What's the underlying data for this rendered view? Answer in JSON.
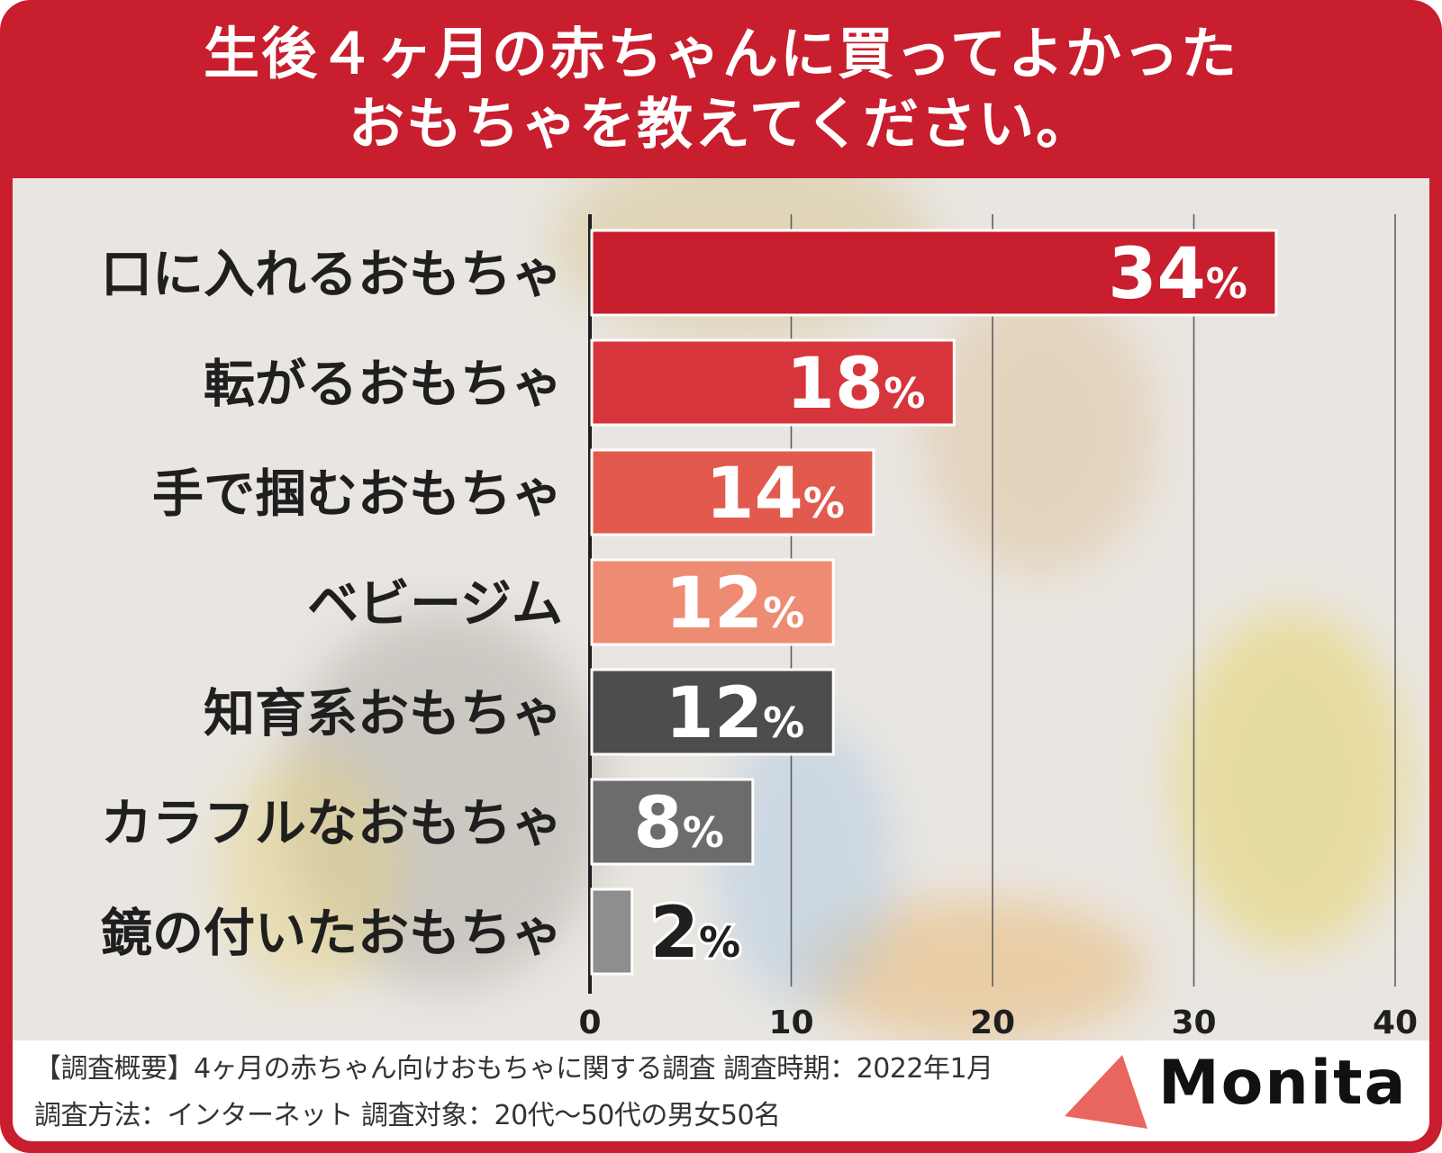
{
  "header": {
    "title_line1": "生後４ヶ月の赤ちゃんに買ってよかった",
    "title_line2": "おもちゃを教えてください。"
  },
  "colors": {
    "frame": "#c81e2e",
    "bar_1": "#c81e2e",
    "bar_2": "#d7353c",
    "bar_3": "#e25a4d",
    "bar_4": "#ee8c73",
    "bar_5": "#4e4d4e",
    "bar_6": "#6d6c6c",
    "bar_7": "#8f8e8e",
    "logo_mark": "#e9655f"
  },
  "chart_data": {
    "type": "bar",
    "orientation": "horizontal",
    "categories": [
      "口に入れるおもちゃ",
      "転がるおもちゃ",
      "手で掴むおもちゃ",
      "ベビージム",
      "知育系おもちゃ",
      "カラフルなおもちゃ",
      "鏡の付いたおもちゃ"
    ],
    "values": [
      34,
      18,
      14,
      12,
      12,
      8,
      2
    ],
    "value_labels": [
      "34",
      "18",
      "14",
      "12",
      "12",
      "8",
      "2"
    ],
    "unit": "%",
    "xlim": [
      0,
      40
    ],
    "x_ticks": [
      "0",
      "10",
      "20",
      "30",
      "40"
    ],
    "grid": true
  },
  "footer": {
    "note_line1": "【調査概要】4ヶ月の赤ちゃん向けおもちゃに関する調査 調査時期：2022年1月",
    "note_line2": "調査方法：インターネット 調査対象：20代〜50代の男女50名",
    "logo_text": "Monita"
  }
}
